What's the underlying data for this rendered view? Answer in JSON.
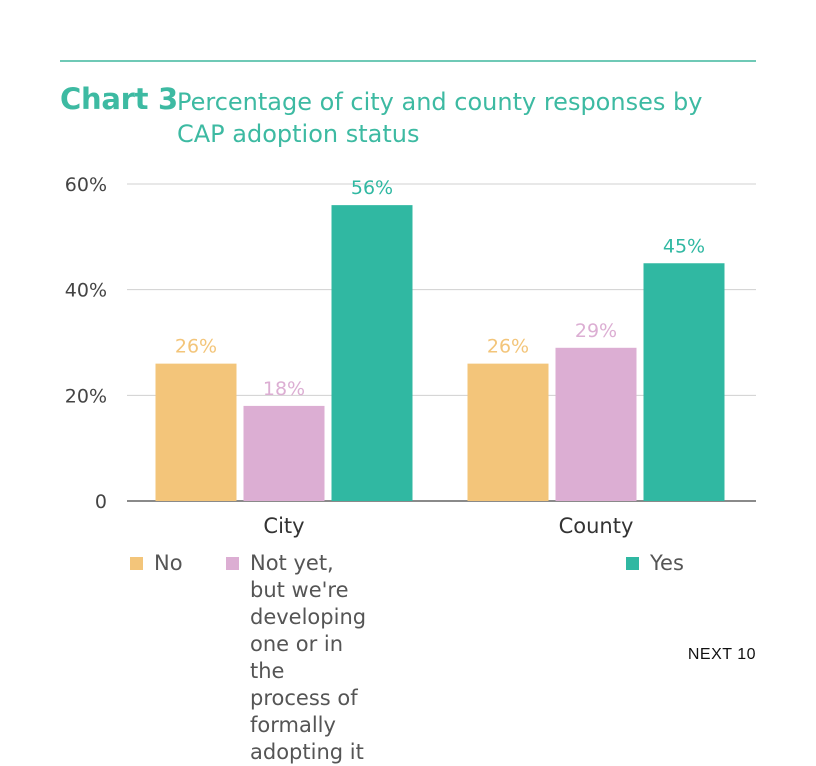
{
  "header": {
    "chart_number": "Chart 3",
    "title": "Percentage of city and county responses by CAP adoption status"
  },
  "colors": {
    "accent": "#3dbaa2",
    "no": "#f3c57a",
    "not_yet": "#dcaed3",
    "yes": "#30b8a2",
    "rule": "#6fc9b6",
    "grid": "#d0d0d0",
    "axis": "#444444"
  },
  "chart_data": {
    "type": "bar",
    "title": "Percentage of city and county responses by CAP adoption status",
    "categories": [
      "City",
      "County"
    ],
    "series": [
      {
        "name": "No",
        "values": [
          26,
          26
        ],
        "labels": [
          "26%",
          "26%"
        ]
      },
      {
        "name": "Not yet, but we're developing one or in the process of formally adopting it",
        "values": [
          18,
          29
        ],
        "labels": [
          "18%",
          "29%"
        ]
      },
      {
        "name": "Yes",
        "values": [
          56,
          45
        ],
        "labels": [
          "56%",
          "45%"
        ]
      }
    ],
    "ylim": [
      0,
      60
    ],
    "yticks": [
      0,
      20,
      40,
      60
    ],
    "ytick_labels": [
      "0",
      "20%",
      "40%",
      "60%"
    ],
    "xlabel": "",
    "ylabel": "",
    "grid": true,
    "legend_position": "bottom"
  },
  "legend": {
    "items": [
      {
        "label_lines": [
          "No"
        ]
      },
      {
        "label_lines": [
          "Not yet, but we're developing",
          "one or in the process of",
          "formally adopting it"
        ]
      },
      {
        "label_lines": [
          "Yes"
        ]
      }
    ]
  },
  "footer": {
    "text": "NEXT 10"
  }
}
